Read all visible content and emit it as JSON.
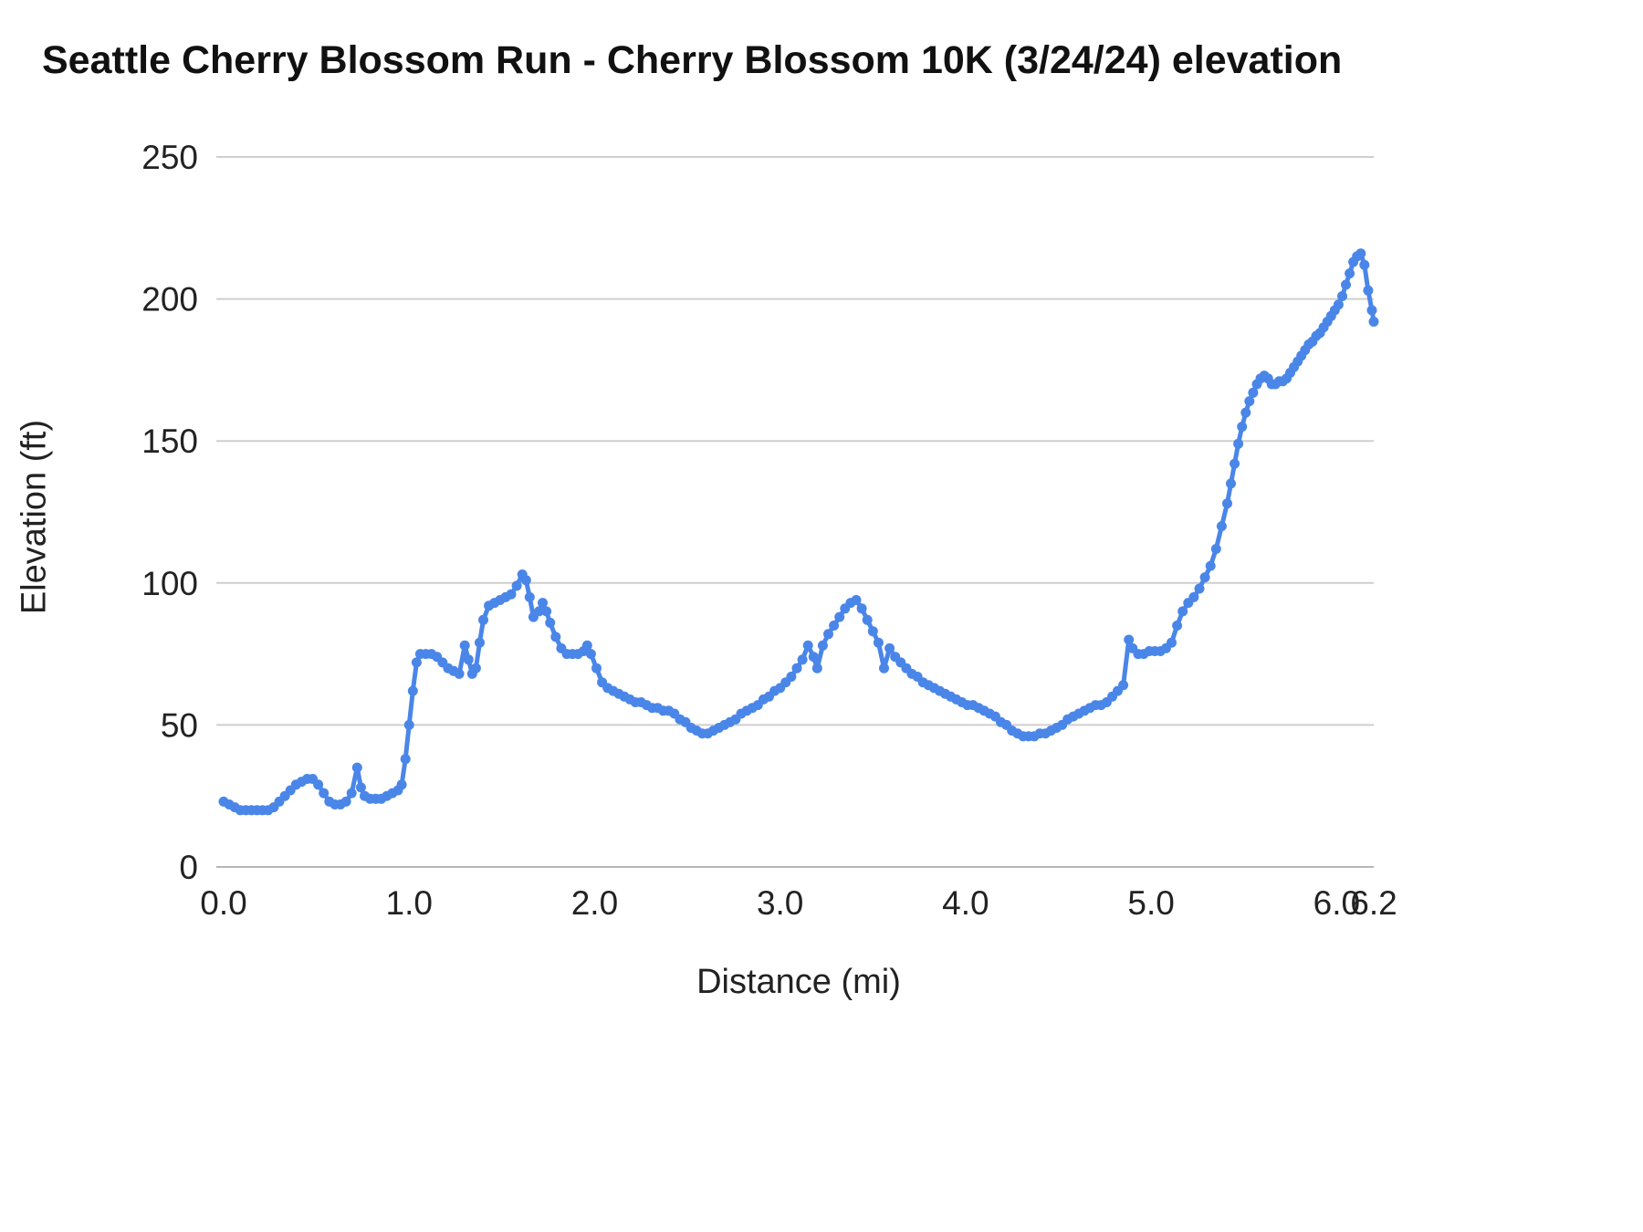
{
  "title": "Seattle Cherry Blossom Run - Cherry Blossom 10K (3/24/24) elevation",
  "chart_data": {
    "type": "line",
    "title": "Seattle Cherry Blossom Run - Cherry Blossom 10K (3/24/24) elevation",
    "xlabel": "Distance (mi)",
    "ylabel": "Elevation (ft)",
    "xlim": [
      0,
      6.2
    ],
    "ylim": [
      0,
      250
    ],
    "grid": "horizontal",
    "legend_position": "none",
    "x_ticks": {
      "values": [
        0.0,
        1.0,
        2.0,
        3.0,
        4.0,
        5.0,
        6.0,
        6.2
      ],
      "labels": [
        "0.0",
        "1.0",
        "2.0",
        "3.0",
        "4.0",
        "5.0",
        "6.0",
        "6.2"
      ]
    },
    "y_ticks": {
      "values": [
        0,
        50,
        100,
        150,
        200,
        250
      ],
      "labels": [
        "0",
        "50",
        "100",
        "150",
        "200",
        "250"
      ]
    },
    "series": [
      {
        "name": "elevation",
        "color": "#4a86e8",
        "marker": "circle",
        "points": [
          [
            0.0,
            23
          ],
          [
            0.03,
            22
          ],
          [
            0.06,
            21
          ],
          [
            0.09,
            20
          ],
          [
            0.12,
            20
          ],
          [
            0.15,
            20
          ],
          [
            0.18,
            20
          ],
          [
            0.21,
            20
          ],
          [
            0.24,
            20
          ],
          [
            0.27,
            21
          ],
          [
            0.3,
            23
          ],
          [
            0.33,
            25
          ],
          [
            0.36,
            27
          ],
          [
            0.39,
            29
          ],
          [
            0.42,
            30
          ],
          [
            0.45,
            31
          ],
          [
            0.48,
            31
          ],
          [
            0.51,
            29
          ],
          [
            0.54,
            26
          ],
          [
            0.57,
            23
          ],
          [
            0.6,
            22
          ],
          [
            0.63,
            22
          ],
          [
            0.66,
            23
          ],
          [
            0.69,
            26
          ],
          [
            0.72,
            35
          ],
          [
            0.74,
            28
          ],
          [
            0.76,
            25
          ],
          [
            0.79,
            24
          ],
          [
            0.82,
            24
          ],
          [
            0.85,
            24
          ],
          [
            0.88,
            25
          ],
          [
            0.91,
            26
          ],
          [
            0.94,
            27
          ],
          [
            0.96,
            29
          ],
          [
            0.98,
            38
          ],
          [
            1.0,
            50
          ],
          [
            1.02,
            62
          ],
          [
            1.04,
            72
          ],
          [
            1.06,
            75
          ],
          [
            1.09,
            75
          ],
          [
            1.12,
            75
          ],
          [
            1.15,
            74
          ],
          [
            1.18,
            72
          ],
          [
            1.21,
            70
          ],
          [
            1.24,
            69
          ],
          [
            1.27,
            68
          ],
          [
            1.3,
            78
          ],
          [
            1.32,
            73
          ],
          [
            1.34,
            68
          ],
          [
            1.36,
            70
          ],
          [
            1.38,
            79
          ],
          [
            1.4,
            87
          ],
          [
            1.43,
            92
          ],
          [
            1.46,
            93
          ],
          [
            1.49,
            94
          ],
          [
            1.52,
            95
          ],
          [
            1.55,
            96
          ],
          [
            1.58,
            99
          ],
          [
            1.61,
            103
          ],
          [
            1.63,
            101
          ],
          [
            1.65,
            95
          ],
          [
            1.67,
            88
          ],
          [
            1.7,
            90
          ],
          [
            1.72,
            93
          ],
          [
            1.74,
            90
          ],
          [
            1.76,
            86
          ],
          [
            1.79,
            81
          ],
          [
            1.82,
            77
          ],
          [
            1.85,
            75
          ],
          [
            1.88,
            75
          ],
          [
            1.91,
            75
          ],
          [
            1.94,
            76
          ],
          [
            1.96,
            78
          ],
          [
            1.98,
            75
          ],
          [
            2.01,
            70
          ],
          [
            2.04,
            65
          ],
          [
            2.07,
            63
          ],
          [
            2.1,
            62
          ],
          [
            2.13,
            61
          ],
          [
            2.16,
            60
          ],
          [
            2.19,
            59
          ],
          [
            2.22,
            58
          ],
          [
            2.25,
            58
          ],
          [
            2.28,
            57
          ],
          [
            2.31,
            56
          ],
          [
            2.34,
            56
          ],
          [
            2.37,
            55
          ],
          [
            2.4,
            55
          ],
          [
            2.43,
            54
          ],
          [
            2.46,
            52
          ],
          [
            2.49,
            51
          ],
          [
            2.52,
            49
          ],
          [
            2.55,
            48
          ],
          [
            2.58,
            47
          ],
          [
            2.61,
            47
          ],
          [
            2.64,
            48
          ],
          [
            2.67,
            49
          ],
          [
            2.7,
            50
          ],
          [
            2.73,
            51
          ],
          [
            2.76,
            52
          ],
          [
            2.79,
            54
          ],
          [
            2.82,
            55
          ],
          [
            2.85,
            56
          ],
          [
            2.88,
            57
          ],
          [
            2.91,
            59
          ],
          [
            2.94,
            60
          ],
          [
            2.97,
            62
          ],
          [
            3.0,
            63
          ],
          [
            3.03,
            65
          ],
          [
            3.06,
            67
          ],
          [
            3.09,
            70
          ],
          [
            3.12,
            73
          ],
          [
            3.15,
            78
          ],
          [
            3.18,
            74
          ],
          [
            3.2,
            70
          ],
          [
            3.23,
            78
          ],
          [
            3.26,
            82
          ],
          [
            3.29,
            85
          ],
          [
            3.32,
            88
          ],
          [
            3.35,
            91
          ],
          [
            3.38,
            93
          ],
          [
            3.41,
            94
          ],
          [
            3.44,
            91
          ],
          [
            3.47,
            87
          ],
          [
            3.5,
            83
          ],
          [
            3.53,
            79
          ],
          [
            3.56,
            70
          ],
          [
            3.59,
            77
          ],
          [
            3.62,
            74
          ],
          [
            3.65,
            72
          ],
          [
            3.68,
            70
          ],
          [
            3.71,
            68
          ],
          [
            3.74,
            67
          ],
          [
            3.77,
            65
          ],
          [
            3.8,
            64
          ],
          [
            3.83,
            63
          ],
          [
            3.86,
            62
          ],
          [
            3.89,
            61
          ],
          [
            3.92,
            60
          ],
          [
            3.95,
            59
          ],
          [
            3.98,
            58
          ],
          [
            4.01,
            57
          ],
          [
            4.04,
            57
          ],
          [
            4.07,
            56
          ],
          [
            4.1,
            55
          ],
          [
            4.13,
            54
          ],
          [
            4.16,
            53
          ],
          [
            4.19,
            51
          ],
          [
            4.22,
            50
          ],
          [
            4.25,
            48
          ],
          [
            4.28,
            47
          ],
          [
            4.31,
            46
          ],
          [
            4.34,
            46
          ],
          [
            4.37,
            46
          ],
          [
            4.4,
            47
          ],
          [
            4.43,
            47
          ],
          [
            4.46,
            48
          ],
          [
            4.49,
            49
          ],
          [
            4.52,
            50
          ],
          [
            4.55,
            52
          ],
          [
            4.58,
            53
          ],
          [
            4.61,
            54
          ],
          [
            4.64,
            55
          ],
          [
            4.67,
            56
          ],
          [
            4.7,
            57
          ],
          [
            4.73,
            57
          ],
          [
            4.76,
            58
          ],
          [
            4.79,
            60
          ],
          [
            4.82,
            62
          ],
          [
            4.85,
            64
          ],
          [
            4.88,
            80
          ],
          [
            4.9,
            77
          ],
          [
            4.93,
            75
          ],
          [
            4.96,
            75
          ],
          [
            4.99,
            76
          ],
          [
            5.02,
            76
          ],
          [
            5.05,
            76
          ],
          [
            5.08,
            77
          ],
          [
            5.11,
            79
          ],
          [
            5.14,
            85
          ],
          [
            5.17,
            90
          ],
          [
            5.2,
            93
          ],
          [
            5.23,
            95
          ],
          [
            5.26,
            98
          ],
          [
            5.29,
            102
          ],
          [
            5.32,
            106
          ],
          [
            5.35,
            112
          ],
          [
            5.38,
            120
          ],
          [
            5.41,
            128
          ],
          [
            5.43,
            135
          ],
          [
            5.45,
            142
          ],
          [
            5.47,
            149
          ],
          [
            5.49,
            155
          ],
          [
            5.51,
            160
          ],
          [
            5.53,
            164
          ],
          [
            5.55,
            167
          ],
          [
            5.57,
            170
          ],
          [
            5.59,
            172
          ],
          [
            5.61,
            173
          ],
          [
            5.63,
            172
          ],
          [
            5.65,
            170
          ],
          [
            5.67,
            170
          ],
          [
            5.69,
            171
          ],
          [
            5.71,
            171
          ],
          [
            5.73,
            172
          ],
          [
            5.75,
            174
          ],
          [
            5.77,
            176
          ],
          [
            5.79,
            178
          ],
          [
            5.81,
            180
          ],
          [
            5.83,
            182
          ],
          [
            5.85,
            184
          ],
          [
            5.87,
            185
          ],
          [
            5.89,
            187
          ],
          [
            5.91,
            188
          ],
          [
            5.93,
            190
          ],
          [
            5.95,
            192
          ],
          [
            5.97,
            194
          ],
          [
            5.99,
            196
          ],
          [
            6.01,
            198
          ],
          [
            6.03,
            201
          ],
          [
            6.05,
            205
          ],
          [
            6.07,
            209
          ],
          [
            6.09,
            213
          ],
          [
            6.11,
            215
          ],
          [
            6.13,
            216
          ],
          [
            6.15,
            212
          ],
          [
            6.17,
            203
          ],
          [
            6.19,
            196
          ],
          [
            6.2,
            192
          ]
        ]
      }
    ]
  },
  "colors": {
    "series_blue": "#4a86e8",
    "gridline": "#cfcfcf",
    "baseline": "#b7b7b7",
    "text": "#222222",
    "title_text": "#111111",
    "background": "#ffffff"
  }
}
